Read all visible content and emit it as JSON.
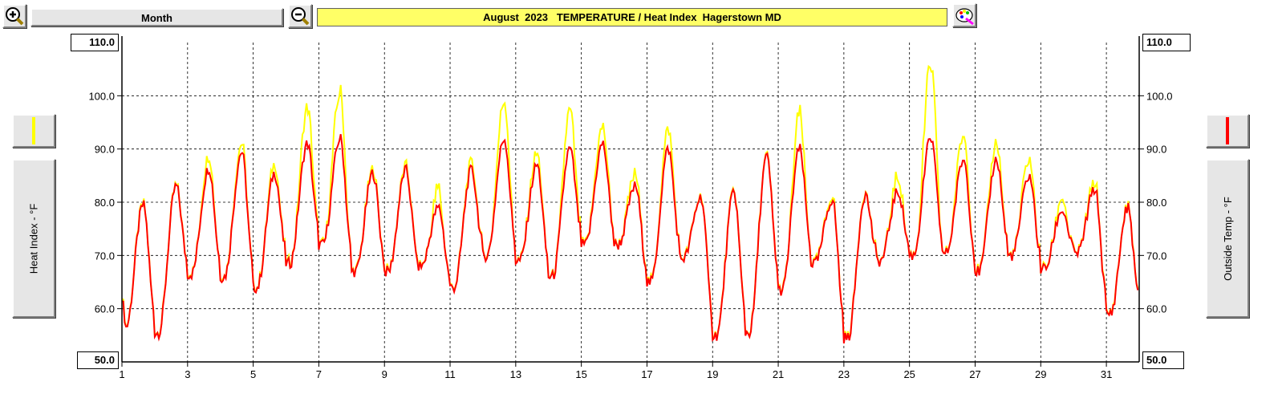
{
  "toolbar": {
    "zoom_in_icon": "magnifier-plus-icon",
    "zoom_out_icon": "magnifier-minus-icon",
    "period_label": "Month",
    "title": "August  2023   TEMPERATURE / Heat Index  Hagerstown MD",
    "settings_icon": "paint-palette-icon"
  },
  "scale": {
    "left_max": "110.0",
    "left_min": "50.0",
    "right_max": "110.0",
    "right_min": "50.0"
  },
  "legend": {
    "left_label": "Heat Index - °F",
    "right_label": "Outside Temp - °F",
    "left_color": "#ffff00",
    "right_color": "#ff0000"
  },
  "colors": {
    "heat_index": "#ffff00",
    "outside_temp": "#ff0000",
    "grid": "#000000"
  },
  "chart_data": {
    "type": "line",
    "title": "August  2023   TEMPERATURE / Heat Index  Hagerstown MD",
    "xlabel": "",
    "ylabel_left": "Heat Index - °F",
    "ylabel_right": "Outside Temp - °F",
    "x_range": [
      1,
      32
    ],
    "ylim": [
      50,
      110
    ],
    "x_ticks": [
      "1",
      "3",
      "5",
      "7",
      "9",
      "11",
      "13",
      "15",
      "17",
      "19",
      "21",
      "23",
      "25",
      "27",
      "29",
      "31"
    ],
    "y_ticks": [
      "60.0",
      "70.0",
      "80.0",
      "90.0",
      "100.0"
    ],
    "grid": true,
    "daily": {
      "day": [
        1,
        2,
        3,
        4,
        5,
        6,
        7,
        8,
        9,
        10,
        11,
        12,
        13,
        14,
        15,
        16,
        17,
        18,
        19,
        20,
        21,
        22,
        23,
        24,
        25,
        26,
        27,
        28,
        29,
        30,
        31
      ],
      "temp_min": [
        56.5,
        55.5,
        66.5,
        66,
        64,
        68.5,
        72,
        67,
        67,
        68,
        64,
        70,
        69,
        66,
        72,
        72,
        65,
        69.5,
        55,
        55.5,
        63.5,
        68.5,
        54.5,
        69,
        70,
        70.5,
        67,
        70,
        67.5,
        70.5,
        59
      ],
      "temp_max": [
        79.5,
        83,
        86.5,
        89.5,
        85.5,
        91,
        92,
        85.5,
        86,
        79,
        86,
        92,
        87,
        90,
        91,
        83,
        90,
        81,
        82,
        88.5,
        90,
        80.5,
        81.5,
        82,
        92,
        88,
        88,
        85,
        78.5,
        82.5,
        79
      ],
      "heat_index_max": [
        79.5,
        83,
        88.5,
        91,
        87,
        97.5,
        100.5,
        86,
        86.5,
        82.5,
        87,
        99,
        89,
        97,
        94,
        85,
        93.5,
        81,
        82,
        88.5,
        96.5,
        81,
        81.5,
        84.5,
        105.5,
        92.5,
        91,
        88,
        81,
        83.5,
        79
      ]
    },
    "series": [
      {
        "name": "Outside Temp - °F",
        "color": "#ff0000"
      },
      {
        "name": "Heat Index - °F",
        "color": "#ffff00"
      }
    ]
  }
}
